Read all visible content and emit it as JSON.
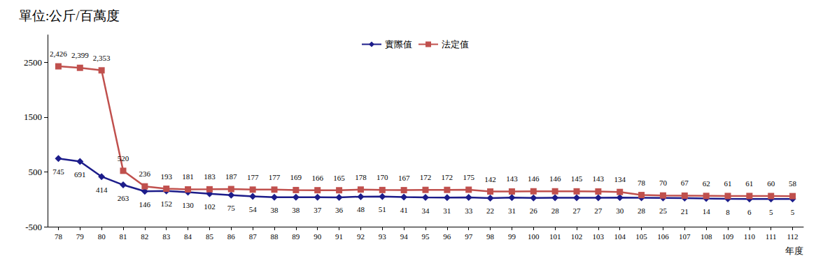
{
  "chart_data": {
    "type": "line",
    "title": "單位:公斤/百萬度",
    "x_label": "年度",
    "categories": [
      "78",
      "79",
      "80",
      "81",
      "82",
      "83",
      "84",
      "85",
      "86",
      "87",
      "88",
      "89",
      "90",
      "91",
      "92",
      "93",
      "94",
      "95",
      "96",
      "97",
      "98",
      "99",
      "100",
      "101",
      "102",
      "103",
      "104",
      "105",
      "106",
      "107",
      "108",
      "109",
      "110",
      "111",
      "112"
    ],
    "series": [
      {
        "name": "實際值",
        "color": "#1c1c8a",
        "marker": "diamond",
        "label_position": "bottom",
        "values": [
          745,
          691,
          414,
          263,
          146,
          152,
          130,
          102,
          75,
          54,
          38,
          38,
          37,
          36,
          48,
          51,
          41,
          34,
          31,
          33,
          22,
          31,
          26,
          28,
          27,
          27,
          30,
          28,
          25,
          21,
          14,
          8,
          6,
          5,
          5
        ]
      },
      {
        "name": "法定值",
        "color": "#c0504d",
        "marker": "square",
        "label_position": "top",
        "values": [
          2426,
          2399,
          2353,
          520,
          236,
          193,
          181,
          183,
          187,
          177,
          177,
          169,
          166,
          165,
          178,
          170,
          167,
          172,
          172,
          175,
          142,
          143,
          146,
          146,
          145,
          143,
          134,
          78,
          70,
          67,
          62,
          61,
          61,
          60,
          58
        ],
        "value_labels": [
          "2,426",
          "2,399",
          "2,353",
          "520",
          "236",
          "193",
          "181",
          "183",
          "187",
          "177",
          "177",
          "169",
          "166",
          "165",
          "178",
          "170",
          "167",
          "172",
          "172",
          "175",
          "142",
          "143",
          "146",
          "146",
          "145",
          "143",
          "134",
          "78",
          "70",
          "67",
          "62",
          "61",
          "61",
          "60",
          "58"
        ]
      }
    ],
    "ylim": [
      -500,
      3000
    ],
    "yticks": [
      -500,
      500,
      1500,
      2500
    ],
    "grid": false,
    "legend": "top",
    "data_labels": true
  }
}
